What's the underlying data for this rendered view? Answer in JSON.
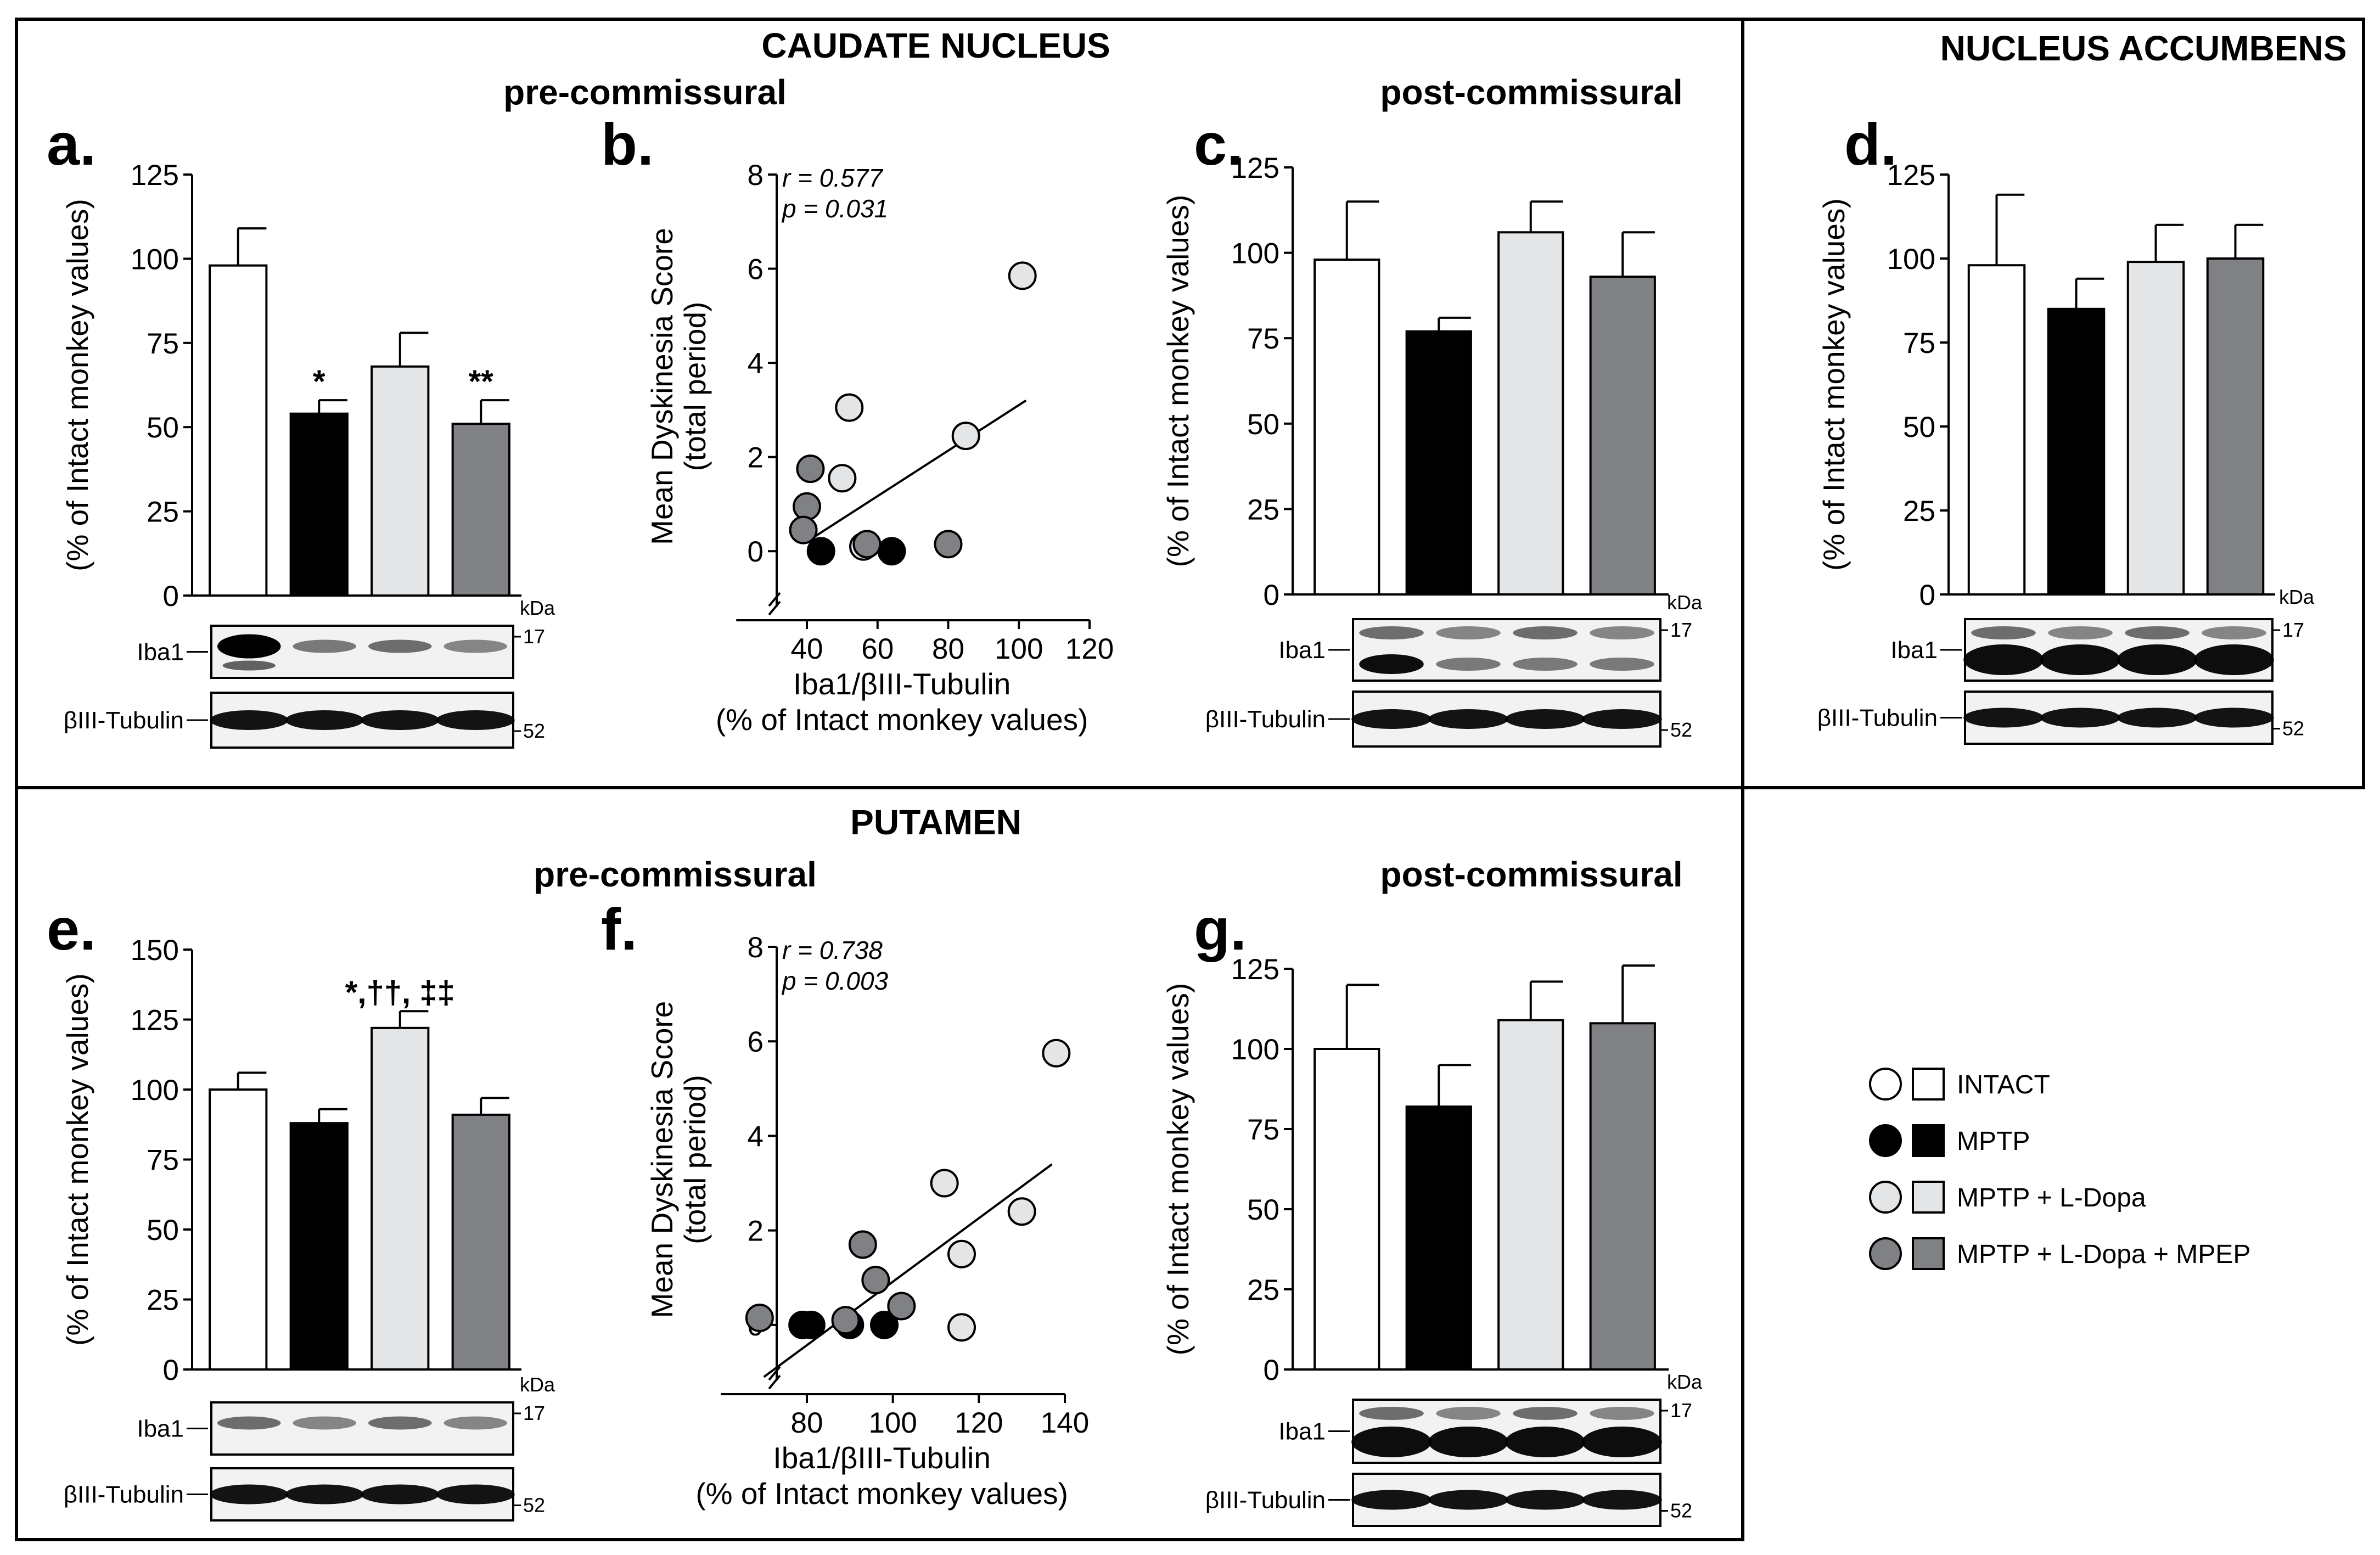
{
  "headers": {
    "caudate": "CAUDATE NUCLEUS",
    "accumbens": "NUCLEUS ACCUMBENS",
    "putamen": "PUTAMEN",
    "pre_top": "pre-commissural",
    "post_top": "post-commissural",
    "pre_bottom": "pre-commissural",
    "post_bottom": "post-commissural"
  },
  "colors": {
    "intact": "#ffffff",
    "mptp": "#000000",
    "ldopa": "#e4e5e7",
    "mpep": "#808184",
    "border": "#000000"
  },
  "blot_labels": {
    "iba1": "Iba1",
    "tubulin": "βIII-Tubulin",
    "kda": "kDa",
    "mw_iba1": "17",
    "mw_tubulin": "52"
  },
  "legend": [
    {
      "label": "INTACT",
      "color_key": "intact"
    },
    {
      "label": "MPTP",
      "color_key": "mptp"
    },
    {
      "label": "MPTP + L-Dopa",
      "color_key": "ldopa"
    },
    {
      "label": "MPTP + L-Dopa + MPEP",
      "color_key": "mpep"
    }
  ],
  "chart_data": [
    {
      "id": "a",
      "panel_label": "a.",
      "type": "bar",
      "ylabel": "(% of Intact monkey values)",
      "ylim": [
        0,
        125
      ],
      "yticks": [
        0,
        25,
        50,
        75,
        100,
        125
      ],
      "categories": [
        "INTACT",
        "MPTP",
        "MPTP + L-Dopa",
        "MPTP + L-Dopa + MPEP"
      ],
      "values": [
        98,
        54,
        68,
        51
      ],
      "errors": [
        11,
        4,
        10,
        7
      ],
      "annotations": [
        "",
        "*",
        "",
        "**"
      ]
    },
    {
      "id": "b",
      "panel_label": "b.",
      "type": "scatter",
      "ylabel": "Mean Dyskinesia Score",
      "ylabel2": "(total period)",
      "xlabel": "Iba1/βIII-Tubulin",
      "xlabel2": "(% of Intact monkey values)",
      "xlim": [
        20,
        120
      ],
      "xticks": [
        40,
        60,
        80,
        100,
        120
      ],
      "ylim": [
        -1,
        8
      ],
      "yticks": [
        0,
        2,
        4,
        6,
        8
      ],
      "r_text": "r = 0.577",
      "p_text": "p = 0.031",
      "fit": {
        "x": [
          42,
          102
        ],
        "y": [
          0.3,
          3.2
        ]
      },
      "series": [
        {
          "name": "MPTP",
          "color_key": "mptp",
          "points": [
            [
              44,
              0
            ],
            [
              64,
              0
            ]
          ]
        },
        {
          "name": "MPTP + L-Dopa",
          "color_key": "ldopa",
          "points": [
            [
              52,
              3.05
            ],
            [
              50,
              1.55
            ],
            [
              85,
              2.45
            ],
            [
              101,
              5.85
            ],
            [
              56,
              0.1
            ]
          ]
        },
        {
          "name": "MPTP + L-Dopa + MPEP",
          "color_key": "mpep",
          "points": [
            [
              41,
              1.75
            ],
            [
              40,
              0.95
            ],
            [
              39,
              0.45
            ],
            [
              57,
              0.15
            ],
            [
              80,
              0.15
            ]
          ]
        }
      ]
    },
    {
      "id": "c",
      "panel_label": "c.",
      "type": "bar",
      "ylabel": "(% of Intact monkey values)",
      "ylim": [
        0,
        125
      ],
      "yticks": [
        0,
        25,
        50,
        75,
        100,
        125
      ],
      "categories": [
        "INTACT",
        "MPTP",
        "MPTP + L-Dopa",
        "MPTP + L-Dopa + MPEP"
      ],
      "values": [
        98,
        77,
        106,
        93
      ],
      "errors": [
        17,
        4,
        9,
        13
      ],
      "annotations": [
        "",
        "",
        "",
        ""
      ]
    },
    {
      "id": "d",
      "panel_label": "d.",
      "type": "bar",
      "ylabel": "(% of Intact monkey values)",
      "ylim": [
        0,
        125
      ],
      "yticks": [
        0,
        25,
        50,
        75,
        100,
        125
      ],
      "categories": [
        "INTACT",
        "MPTP",
        "MPTP + L-Dopa",
        "MPTP + L-Dopa + MPEP"
      ],
      "values": [
        98,
        85,
        99,
        100
      ],
      "errors": [
        21,
        9,
        11,
        10
      ],
      "annotations": [
        "",
        "",
        "",
        ""
      ]
    },
    {
      "id": "e",
      "panel_label": "e.",
      "type": "bar",
      "ylabel": "(% of Intact monkey values)",
      "ylim": [
        0,
        150
      ],
      "yticks": [
        0,
        25,
        50,
        75,
        100,
        125,
        150
      ],
      "categories": [
        "INTACT",
        "MPTP",
        "MPTP + L-Dopa",
        "MPTP + L-Dopa + MPEP"
      ],
      "values": [
        100,
        88,
        122,
        91
      ],
      "errors": [
        6,
        5,
        6,
        6
      ],
      "annotations": [
        "",
        "",
        "*,††, ‡‡",
        ""
      ]
    },
    {
      "id": "f",
      "panel_label": "f.",
      "type": "scatter",
      "ylabel": "Mean Dyskinesia Score",
      "ylabel2": "(total period)",
      "xlabel": "Iba1/βIII-Tubulin",
      "xlabel2": "(% of Intact monkey values)",
      "xlim": [
        60,
        140
      ],
      "xticks": [
        80,
        100,
        120,
        140
      ],
      "ylim": [
        -1,
        8
      ],
      "yticks": [
        0,
        2,
        4,
        6,
        8
      ],
      "r_text": "r = 0.738",
      "p_text": "p = 0.003",
      "fit": {
        "x": [
          70,
          137
        ],
        "y": [
          -1.1,
          3.4
        ]
      },
      "series": [
        {
          "name": "MPTP",
          "color_key": "mptp",
          "points": [
            [
              79,
              0
            ],
            [
              81,
              0
            ],
            [
              90,
              0
            ],
            [
              98,
              0
            ]
          ]
        },
        {
          "name": "MPTP + L-Dopa",
          "color_key": "ldopa",
          "points": [
            [
              112,
              3.0
            ],
            [
              116,
              1.5
            ],
            [
              130,
              2.4
            ],
            [
              138,
              5.75
            ],
            [
              116,
              -0.05
            ]
          ]
        },
        {
          "name": "MPTP + L-Dopa + MPEP",
          "color_key": "mpep",
          "points": [
            [
              93,
              1.7
            ],
            [
              96,
              0.95
            ],
            [
              102,
              0.4
            ],
            [
              89,
              0.1
            ],
            [
              69,
              0.15
            ]
          ]
        }
      ]
    },
    {
      "id": "g",
      "panel_label": "g.",
      "type": "bar",
      "ylabel": "(% of Intact monkey values)",
      "ylim": [
        0,
        125
      ],
      "yticks": [
        0,
        25,
        50,
        75,
        100,
        125
      ],
      "categories": [
        "INTACT",
        "MPTP",
        "MPTP + L-Dopa",
        "MPTP + L-Dopa + MPEP"
      ],
      "values": [
        100,
        82,
        109,
        108
      ],
      "errors": [
        20,
        13,
        12,
        18
      ],
      "annotations": [
        "",
        "",
        "",
        ""
      ]
    }
  ]
}
